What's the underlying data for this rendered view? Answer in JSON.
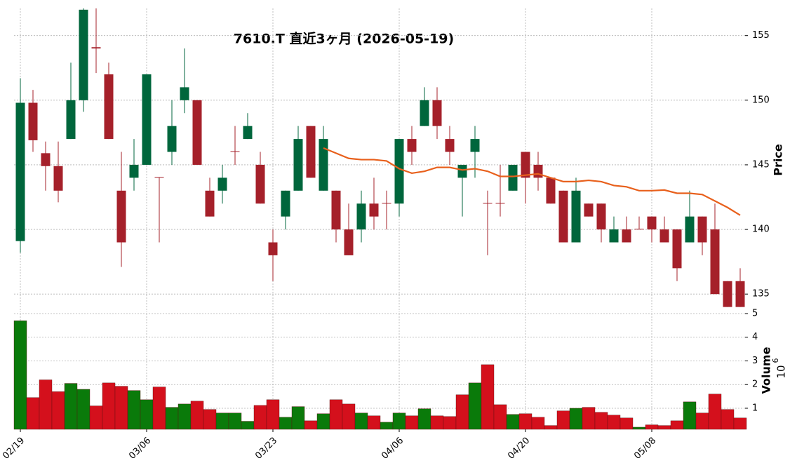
{
  "chart_data": [
    {
      "type": "candlestick",
      "title": "7610.T  直近3ヶ月  (2026-05-19)",
      "ylabel": "Price",
      "categories": [
        "02/19",
        null,
        null,
        null,
        null,
        null,
        null,
        null,
        null,
        null,
        "03/06",
        null,
        null,
        null,
        null,
        null,
        null,
        null,
        null,
        null,
        "03/23",
        null,
        null,
        null,
        null,
        null,
        null,
        null,
        null,
        null,
        "04/06",
        null,
        null,
        null,
        null,
        null,
        null,
        null,
        null,
        null,
        "04/20",
        null,
        null,
        null,
        null,
        null,
        null,
        null,
        null,
        null,
        "05/08",
        null,
        null,
        null,
        null,
        null,
        null,
        null
      ],
      "open": [
        139.1,
        149.8,
        145.9,
        144.9,
        147,
        150,
        154.1,
        152,
        143,
        144,
        145,
        144.05,
        146,
        150,
        150,
        143,
        143,
        146.05,
        147,
        145,
        139,
        141,
        143,
        148,
        143,
        143,
        140,
        140,
        142,
        142.05,
        142,
        147,
        148,
        150,
        147,
        144,
        146,
        142.05,
        142.05,
        143,
        146,
        145,
        144,
        143,
        139,
        142,
        142,
        139,
        140,
        140.05,
        141,
        140,
        140,
        139,
        141,
        140,
        136,
        136
      ],
      "high": [
        151.7,
        150.8,
        146.8,
        146.8,
        152.9,
        157.1,
        157.1,
        152.9,
        146,
        147,
        152,
        144.05,
        150,
        154,
        150,
        144,
        145,
        148,
        149,
        146,
        140,
        143,
        148,
        148,
        148,
        143,
        142,
        143,
        144,
        143,
        147,
        148,
        151,
        151,
        148,
        145,
        148,
        143,
        145,
        145,
        146,
        146,
        144,
        143,
        144,
        142,
        142,
        141,
        141,
        141,
        141,
        141,
        140,
        143,
        141,
        142,
        136,
        137
      ],
      "low": [
        138.2,
        146.0,
        143.0,
        142.1,
        147,
        149.1,
        152.1,
        147,
        137.1,
        143,
        145,
        139,
        145,
        149,
        145,
        141,
        142,
        145,
        147,
        142,
        136,
        140,
        143,
        144,
        143,
        139,
        138,
        139,
        140,
        140,
        141,
        145,
        148,
        147,
        145,
        141,
        144,
        138,
        141,
        143,
        142,
        143,
        142,
        139,
        139,
        141,
        139,
        139,
        139,
        140,
        139,
        139,
        136,
        139,
        138,
        135,
        134,
        134
      ],
      "close": [
        149.8,
        146.9,
        144.9,
        143.0,
        150,
        157.0,
        154.0,
        147,
        139,
        145,
        152,
        144,
        148,
        151,
        145,
        141,
        144,
        146,
        148,
        142,
        138,
        143,
        147,
        144,
        147,
        140,
        138,
        142,
        141,
        142,
        147,
        146,
        150,
        148,
        146,
        145,
        147,
        142,
        142,
        145,
        144,
        144,
        142,
        139,
        143,
        141,
        140,
        140,
        139,
        140,
        140,
        139,
        137,
        141,
        139,
        135,
        134,
        134
      ],
      "up_color": "#00663c",
      "down_color": "#a5202a",
      "moving_average": {
        "color": "#e8601c",
        "values": [
          null,
          null,
          null,
          null,
          null,
          null,
          null,
          null,
          null,
          null,
          null,
          null,
          null,
          null,
          null,
          null,
          null,
          null,
          null,
          null,
          null,
          null,
          null,
          null,
          146.3,
          145.9,
          145.5,
          145.4,
          145.4,
          145.3,
          144.7,
          144.35,
          144.5,
          144.8,
          144.8,
          144.6,
          144.7,
          144.5,
          144.1,
          144.1,
          144.2,
          144.3,
          144.0,
          143.7,
          143.7,
          143.8,
          143.7,
          143.4,
          143.3,
          143.0,
          143.0,
          143.05,
          142.8,
          142.8,
          142.7,
          142.2,
          141.7,
          141.1
        ]
      },
      "ylim": [
        133.6,
        157.1
      ],
      "yticks": [
        135,
        140,
        145,
        150,
        155
      ],
      "grid": true
    },
    {
      "type": "bar",
      "ylabel": "Volume",
      "offset_base": "10",
      "offset_exponent": "6",
      "values": [
        4.7,
        1.45,
        2.2,
        1.7,
        2.05,
        1.8,
        1.1,
        2.07,
        1.93,
        1.75,
        1.36,
        1.9,
        1.04,
        1.18,
        1.3,
        0.95,
        0.8,
        0.8,
        0.45,
        1.12,
        1.36,
        0.62,
        1.07,
        0.47,
        0.77,
        1.36,
        1.18,
        0.8,
        0.68,
        0.41,
        0.8,
        0.68,
        0.98,
        0.68,
        0.65,
        1.57,
        2.07,
        2.84,
        1.15,
        0.74,
        0.77,
        0.62,
        0.27,
        0.89,
        1.0,
        1.04,
        0.83,
        0.71,
        0.59,
        0.2,
        0.3,
        0.27,
        0.47,
        1.27,
        0.8,
        1.6,
        0.95,
        0.59
      ],
      "up_color": "#0a7a0a",
      "down_color": "#d4101c",
      "ylim": [
        0.11,
        5.0
      ],
      "yticks": [
        1,
        2,
        3,
        4,
        5
      ],
      "grid": true
    }
  ]
}
